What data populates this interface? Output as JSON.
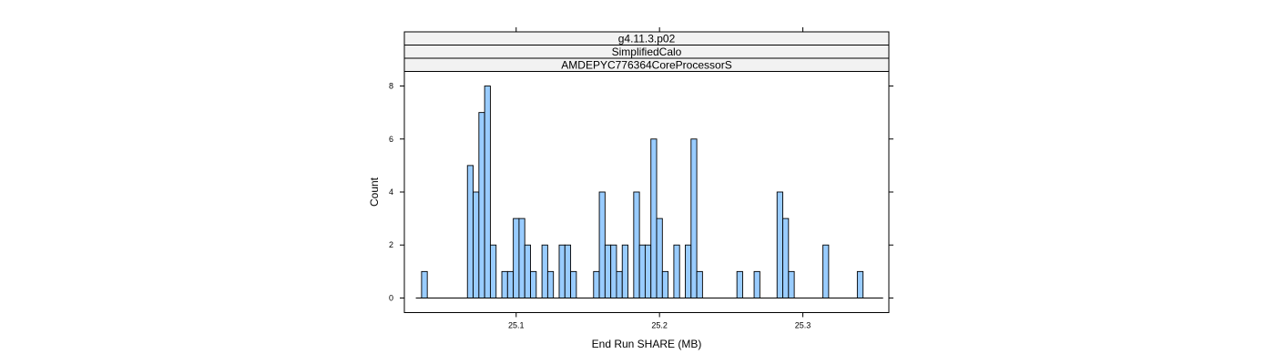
{
  "chart_data": {
    "type": "bar",
    "strips": [
      "g4.11.3.p02",
      "SimplifiedCalo",
      "AMDEPYC776364CoreProcessorS"
    ],
    "xlabel": "End Run SHARE (MB)",
    "ylabel": "Count",
    "xlim": [
      25.022,
      25.36
    ],
    "ylim": [
      -0.55,
      8.55
    ],
    "xticks": [
      25.1,
      25.2,
      25.3
    ],
    "yticks": [
      0,
      2,
      4,
      6,
      8
    ],
    "bin_width": 0.004,
    "bars": [
      {
        "x": 25.036,
        "count": 1
      },
      {
        "x": 25.068,
        "count": 5
      },
      {
        "x": 25.072,
        "count": 4
      },
      {
        "x": 25.076,
        "count": 7
      },
      {
        "x": 25.08,
        "count": 8
      },
      {
        "x": 25.084,
        "count": 2
      },
      {
        "x": 25.092,
        "count": 1
      },
      {
        "x": 25.096,
        "count": 1
      },
      {
        "x": 25.1,
        "count": 3
      },
      {
        "x": 25.104,
        "count": 3
      },
      {
        "x": 25.108,
        "count": 2
      },
      {
        "x": 25.112,
        "count": 1
      },
      {
        "x": 25.12,
        "count": 2
      },
      {
        "x": 25.124,
        "count": 1
      },
      {
        "x": 25.132,
        "count": 2
      },
      {
        "x": 25.136,
        "count": 2
      },
      {
        "x": 25.14,
        "count": 1
      },
      {
        "x": 25.156,
        "count": 1
      },
      {
        "x": 25.16,
        "count": 4
      },
      {
        "x": 25.164,
        "count": 2
      },
      {
        "x": 25.168,
        "count": 2
      },
      {
        "x": 25.172,
        "count": 1
      },
      {
        "x": 25.176,
        "count": 2
      },
      {
        "x": 25.184,
        "count": 4
      },
      {
        "x": 25.188,
        "count": 2
      },
      {
        "x": 25.192,
        "count": 2
      },
      {
        "x": 25.196,
        "count": 6
      },
      {
        "x": 25.2,
        "count": 3
      },
      {
        "x": 25.204,
        "count": 1
      },
      {
        "x": 25.212,
        "count": 2
      },
      {
        "x": 25.22,
        "count": 2
      },
      {
        "x": 25.224,
        "count": 6
      },
      {
        "x": 25.228,
        "count": 1
      },
      {
        "x": 25.256,
        "count": 1
      },
      {
        "x": 25.268,
        "count": 1
      },
      {
        "x": 25.284,
        "count": 4
      },
      {
        "x": 25.288,
        "count": 3
      },
      {
        "x": 25.292,
        "count": 1
      },
      {
        "x": 25.316,
        "count": 2
      },
      {
        "x": 25.34,
        "count": 1
      }
    ],
    "baseline_range": [
      25.03,
      25.356
    ],
    "colors": {
      "fill": "#99ccff",
      "stroke": "#000000",
      "strip": "#f2f2f2"
    },
    "grid": false,
    "legend": "none"
  }
}
